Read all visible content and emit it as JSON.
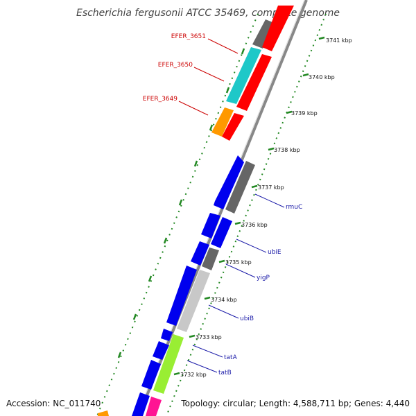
{
  "title": "Escherichia fergusonii ATCC 35469, complete genome",
  "footer": {
    "accession": "Accession: NC_011740",
    "summary": "Topology: circular; Length: 4,588,711 bp; Genes: 4,440"
  },
  "ticks": [
    "3741 kbp",
    "3740 kbp",
    "3739 kbp",
    "3738 kbp",
    "3737 kbp",
    "3736 kbp",
    "3735 kbp",
    "3734 kbp",
    "3733 kbp",
    "3732 kbp"
  ],
  "gene_labels": {
    "efer_3651": "EFER_3651",
    "efer_3650": "EFER_3650",
    "efer_3649": "EFER_3649",
    "rmuC": "rmuC",
    "ubiE": "ubiE",
    "yigP": "yigP",
    "ubiB": "ubiB",
    "tatA": "tatA",
    "tatB": "tatB"
  },
  "colors": {
    "red": "#ff0000",
    "cyan": "#1ec8c8",
    "orange": "#ff9900",
    "blue": "#0000ee",
    "dark_gray": "#666666",
    "light_gray": "#c8c8c8",
    "lime": "#99ee33",
    "magenta": "#ff1493",
    "backbone": "#888888",
    "tick_green": "#228822"
  }
}
